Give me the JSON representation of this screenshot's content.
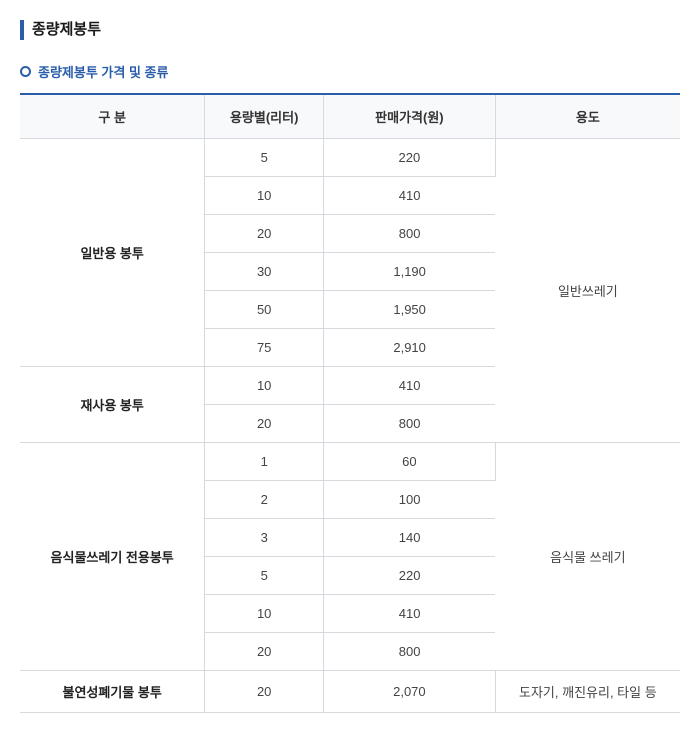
{
  "page_title": "종량제봉투",
  "section_title": "종량제봉투 가격 및 종류",
  "columns": [
    "구 분",
    "용량별(리터)",
    "판매가격(원)",
    "용도"
  ],
  "groups": [
    {
      "category": "일반용 봉투",
      "usage": "일반쓰레기",
      "usage_span_with_next": true,
      "rows": [
        {
          "capacity": "5",
          "price": "220"
        },
        {
          "capacity": "10",
          "price": "410"
        },
        {
          "capacity": "20",
          "price": "800"
        },
        {
          "capacity": "30",
          "price": "1,190"
        },
        {
          "capacity": "50",
          "price": "1,950"
        },
        {
          "capacity": "75",
          "price": "2,910"
        }
      ]
    },
    {
      "category": "재사용 봉투",
      "rows": [
        {
          "capacity": "10",
          "price": "410"
        },
        {
          "capacity": "20",
          "price": "800"
        }
      ]
    },
    {
      "category": "음식물쓰레기 전용봉투",
      "usage": "음식물 쓰레기",
      "rows": [
        {
          "capacity": "1",
          "price": "60"
        },
        {
          "capacity": "2",
          "price": "100"
        },
        {
          "capacity": "3",
          "price": "140"
        },
        {
          "capacity": "5",
          "price": "220"
        },
        {
          "capacity": "10",
          "price": "410"
        },
        {
          "capacity": "20",
          "price": "800"
        }
      ]
    },
    {
      "category": "불연성폐기물 봉투",
      "usage": "도자기, 깨진유리, 타일 등",
      "rows": [
        {
          "capacity": "20",
          "price": "2,070"
        }
      ]
    }
  ],
  "colors": {
    "accent": "#2b5eaa",
    "border": "#d6d9de",
    "header_bg": "#f8f9fb",
    "text": "#333333"
  }
}
